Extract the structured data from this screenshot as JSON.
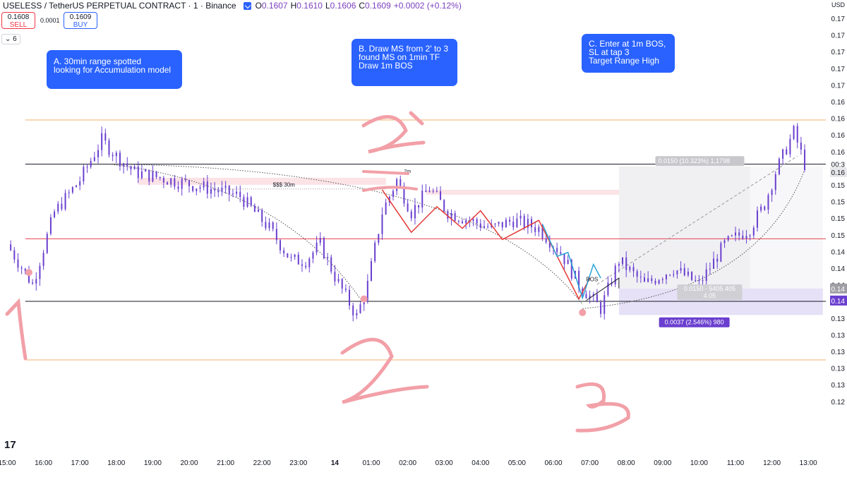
{
  "header": {
    "symbol": "USELESS / TetherUS PERPETUAL CONTRACT · 1 · Binance",
    "o_label": "O",
    "o": "0.1607",
    "h_label": "H",
    "h": "0.1610",
    "l_label": "L",
    "l": "0.1606",
    "c_label": "C",
    "c": "0.1609",
    "change": "+0.0002 (+0.12%)"
  },
  "trade": {
    "sell_price": "0.1608",
    "sell_label": "SELL",
    "spread": "0.0001",
    "buy_price": "0.1609",
    "buy_label": "BUY"
  },
  "indicator_toggle": "6",
  "currency": "USD",
  "notes": {
    "a": "A. 30min range spotted\nlooking for Accumulation model",
    "b": "B. Draw MS from 2' to 3\nfound MS on 1min TF\nDraw 1m BOS",
    "c": "C. Enter at 1m BOS,\nSL at tap 3\nTarget Range High"
  },
  "handwritten": {
    "one": "1",
    "two": "2",
    "two_prime": "2'",
    "three": "3"
  },
  "colors": {
    "candles": "#6a3fcf",
    "range_high_line": "#131722",
    "range_low_line": "#131722",
    "outer_line": "#f6b26b",
    "mid_line": "#e8434f",
    "handwriting": "#f2a0a8",
    "liquidity_zone": "#fbe3e6",
    "target_zone": "#f0f0f3",
    "stop_zone": "#e6e1f7",
    "ms_red": "#e53935",
    "ms_cyan": "#2aa5d8",
    "note_bg": "#2962ff"
  },
  "chart_data": {
    "type": "candlestick",
    "title": "USELESS / TetherUS PERPETUAL CONTRACT · 1 · Binance",
    "xlabel": "",
    "ylabel": "",
    "time_ticks": [
      "15:00",
      "16:00",
      "17:00",
      "18:00",
      "19:00",
      "20:00",
      "21:00",
      "22:00",
      "23:00",
      "14",
      "01:00",
      "02:00",
      "03:00",
      "04:00",
      "05:00",
      "06:00",
      "07:00",
      "08:00",
      "09:00",
      "10:00",
      "11:00",
      "12:00",
      "13:00"
    ],
    "price_ticks": [
      "0.17",
      "0.17",
      "0.17",
      "0.17",
      "0.17",
      "0.16",
      "0.16",
      "0.16",
      "0.16",
      "0.16",
      "0.15",
      "0.15",
      "0.15",
      "0.15",
      "0.14",
      "0.14",
      "0.14",
      "0.14",
      "0.13",
      "0.13",
      "0.13",
      "0.13",
      "0.13",
      "0.12"
    ],
    "price_range": [
      0.125,
      0.175
    ],
    "path": [
      [
        15.0,
        0.148
      ],
      [
        15.7,
        0.143
      ],
      [
        16.3,
        0.152
      ],
      [
        17.0,
        0.156
      ],
      [
        17.6,
        0.161
      ],
      [
        18.0,
        0.159
      ],
      [
        18.5,
        0.157
      ],
      [
        19.5,
        0.156
      ],
      [
        20.5,
        0.155
      ],
      [
        21.4,
        0.154
      ],
      [
        22.2,
        0.15
      ],
      [
        22.8,
        0.146
      ],
      [
        23.2,
        0.146
      ],
      [
        23.6,
        0.148
      ],
      [
        24.0,
        0.144
      ],
      [
        24.6,
        0.139
      ],
      [
        24.9,
        0.143
      ],
      [
        25.3,
        0.152
      ],
      [
        25.7,
        0.156
      ],
      [
        26.1,
        0.152
      ],
      [
        26.6,
        0.155
      ],
      [
        27.1,
        0.152
      ],
      [
        27.7,
        0.151
      ],
      [
        28.3,
        0.15
      ],
      [
        28.9,
        0.151
      ],
      [
        29.6,
        0.15
      ],
      [
        30.2,
        0.147
      ],
      [
        30.7,
        0.143
      ],
      [
        31.3,
        0.14
      ],
      [
        31.8,
        0.146
      ],
      [
        32.5,
        0.143
      ],
      [
        33.3,
        0.145
      ],
      [
        34.0,
        0.143
      ],
      [
        34.7,
        0.148
      ],
      [
        35.4,
        0.15
      ],
      [
        35.8,
        0.153
      ],
      [
        36.1,
        0.157
      ],
      [
        36.6,
        0.162
      ],
      [
        36.9,
        0.158
      ]
    ],
    "levels": [
      {
        "name": "outer-high",
        "price": 0.1635
      },
      {
        "name": "range-high",
        "price": 0.158
      },
      {
        "name": "equilibrium",
        "price": 0.1487
      },
      {
        "name": "range-low",
        "price": 0.1409
      },
      {
        "name": "outer-low",
        "price": 0.1336
      }
    ],
    "annotations": {
      "liquidity_label": "$$$ 30m",
      "ms_label": "2m",
      "bos_label": "BOS",
      "target_box": "0.0150 (10.323%) 1,1798",
      "entry_box_line1": "0.0150 - 5405.405",
      "entry_box_line2": "4.05",
      "stop_box": "0.0037 (2.546%) 980"
    },
    "axis_tags": [
      {
        "text": "00:3",
        "price": 0.158,
        "style": "plain"
      },
      {
        "text": "0.16",
        "price": 0.157,
        "style": "dark"
      },
      {
        "text": "0.14",
        "price": 0.1425,
        "style": "gray"
      },
      {
        "text": "0.14",
        "price": 0.141,
        "style": "purple"
      }
    ]
  }
}
